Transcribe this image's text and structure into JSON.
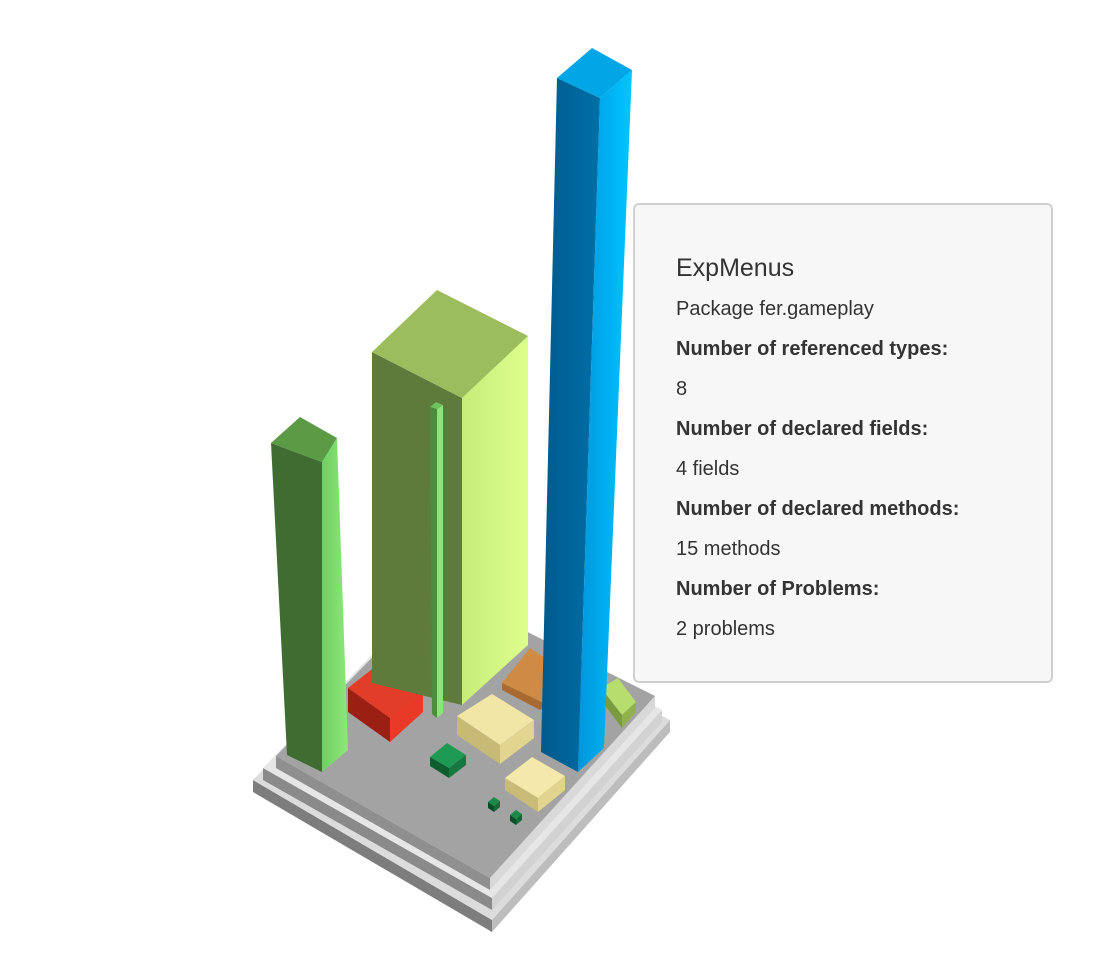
{
  "colors": {
    "base_top": "#a3a3a3",
    "base_left": "#7a7a7a",
    "base_right": "#c4c4c4",
    "tooltip_bg": "#f7f7f7",
    "tooltip_border": "#cfcfcf",
    "text": "#333333"
  },
  "tooltip": {
    "title": "ExpMenus",
    "package": "Package fer.gameplay",
    "ref_types_label": "Number of referenced types:",
    "ref_types_value": "8",
    "fields_label": "Number of declared fields:",
    "fields_value": "4 fields",
    "methods_label": "Number of declared methods:",
    "methods_value": "15 methods",
    "problems_label": "Number of Problems:",
    "problems_value": "2 problems"
  }
}
